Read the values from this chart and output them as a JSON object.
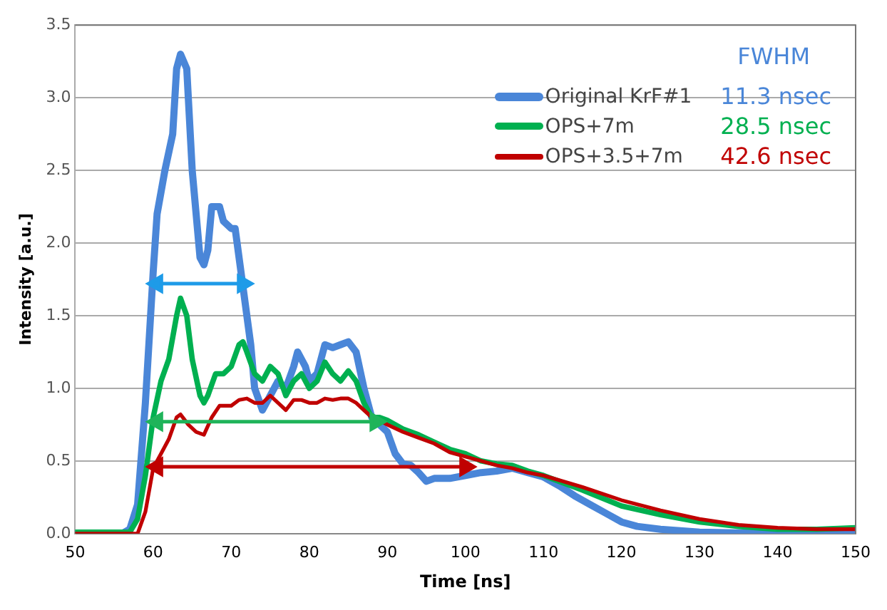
{
  "chart_data": {
    "type": "line",
    "xlabel": "Time [ns]",
    "ylabel": "Intensity [a.u.]",
    "legend_title": "FWHM",
    "legend": "top right",
    "grid": "y",
    "marker": "none",
    "xlim": [
      50,
      150
    ],
    "xticks": [
      50,
      60,
      70,
      80,
      90,
      100,
      110,
      120,
      130,
      140,
      150
    ],
    "ylim": [
      0,
      3.5
    ],
    "yticks": [
      {
        "value": 0,
        "label": "0.0"
      },
      {
        "value": 0.5,
        "label": "0.5"
      },
      {
        "value": 1,
        "label": "1.0"
      },
      {
        "value": 1.5,
        "label": "1.5"
      },
      {
        "value": 2,
        "label": "2.0"
      },
      {
        "value": 2.5,
        "label": "2.5"
      },
      {
        "value": 3,
        "label": "3.0"
      },
      {
        "value": 3.5,
        "label": "3.5"
      }
    ],
    "annotations": [
      "11.3 nsec",
      "28.5 nsec",
      "42.6 nsec"
    ],
    "series": [
      {
        "name": "Original KrF#1",
        "color": "#4a86d8",
        "x": [
          50,
          56,
          57,
          58,
          59,
          60,
          60.5,
          61.5,
          62.5,
          63,
          63.5,
          64.3,
          65,
          66,
          66.5,
          67,
          67.5,
          68.5,
          69,
          70,
          70.5,
          71.5,
          72.5,
          73,
          74,
          75,
          76,
          77,
          78,
          78.5,
          79.5,
          80,
          81,
          82,
          83,
          84,
          85,
          86,
          87,
          88,
          89,
          90,
          91,
          92,
          93,
          94,
          95,
          96,
          98,
          100,
          102,
          104,
          106,
          108,
          110,
          112,
          114,
          116,
          118,
          120,
          122,
          125,
          130,
          140,
          150
        ],
        "values": [
          0,
          0,
          0.03,
          0.2,
          0.9,
          1.8,
          2.2,
          2.5,
          2.75,
          3.2,
          3.3,
          3.2,
          2.5,
          1.9,
          1.85,
          1.95,
          2.25,
          2.25,
          2.15,
          2.1,
          2.1,
          1.7,
          1.3,
          1.0,
          0.85,
          0.95,
          1.05,
          1.0,
          1.15,
          1.25,
          1.15,
          1.05,
          1.1,
          1.3,
          1.28,
          1.3,
          1.32,
          1.25,
          1.0,
          0.8,
          0.75,
          0.7,
          0.55,
          0.48,
          0.47,
          0.42,
          0.36,
          0.38,
          0.38,
          0.4,
          0.42,
          0.43,
          0.45,
          0.42,
          0.39,
          0.33,
          0.26,
          0.2,
          0.14,
          0.08,
          0.05,
          0.03,
          0.01,
          0,
          0.01
        ]
      },
      {
        "name": "OPS+7m",
        "color": "#00b050",
        "x": [
          50,
          57,
          58,
          59,
          60,
          61,
          62,
          63,
          63.5,
          64.3,
          65,
          66,
          66.5,
          67,
          68,
          69,
          70,
          71,
          71.5,
          72,
          73,
          74,
          75,
          76,
          77,
          78,
          79,
          80,
          81,
          82,
          83,
          84,
          85,
          86,
          87,
          88,
          89,
          90,
          92,
          94,
          96,
          98,
          100,
          102,
          104,
          106,
          108,
          110,
          115,
          120,
          125,
          130,
          135,
          140,
          145,
          150
        ],
        "values": [
          0.01,
          0.01,
          0.1,
          0.4,
          0.8,
          1.05,
          1.2,
          1.5,
          1.62,
          1.5,
          1.2,
          0.95,
          0.9,
          0.95,
          1.1,
          1.1,
          1.15,
          1.3,
          1.32,
          1.25,
          1.1,
          1.05,
          1.15,
          1.1,
          0.95,
          1.05,
          1.1,
          1.0,
          1.05,
          1.18,
          1.1,
          1.05,
          1.12,
          1.05,
          0.9,
          0.8,
          0.8,
          0.78,
          0.72,
          0.68,
          0.63,
          0.58,
          0.55,
          0.5,
          0.48,
          0.47,
          0.43,
          0.4,
          0.3,
          0.19,
          0.13,
          0.08,
          0.05,
          0.03,
          0.03,
          0.04
        ]
      },
      {
        "name": "OPS+3.5+7m",
        "color": "#c00000",
        "x": [
          50,
          58,
          59,
          60,
          61,
          62,
          63,
          63.5,
          64.5,
          65.5,
          66.5,
          67.5,
          68.5,
          70,
          71,
          72,
          73,
          74,
          75,
          76,
          77,
          78,
          79,
          80,
          81,
          82,
          83,
          84,
          85,
          86,
          87,
          88,
          89,
          90,
          92,
          94,
          96,
          98,
          100,
          102,
          104,
          106,
          108,
          110,
          115,
          120,
          125,
          130,
          135,
          140,
          145,
          150
        ],
        "values": [
          0,
          0,
          0.15,
          0.45,
          0.55,
          0.65,
          0.8,
          0.82,
          0.75,
          0.7,
          0.68,
          0.8,
          0.88,
          0.88,
          0.92,
          0.93,
          0.9,
          0.9,
          0.95,
          0.9,
          0.85,
          0.92,
          0.92,
          0.9,
          0.9,
          0.93,
          0.92,
          0.93,
          0.93,
          0.9,
          0.85,
          0.8,
          0.78,
          0.75,
          0.7,
          0.66,
          0.62,
          0.56,
          0.53,
          0.5,
          0.47,
          0.45,
          0.42,
          0.4,
          0.32,
          0.23,
          0.16,
          0.1,
          0.06,
          0.04,
          0.03,
          0.03
        ]
      },
      {
        "color": "#1e9be8",
        "marker": "triangle",
        "x": [
          60.5,
          71.5
        ],
        "values": [
          1.72,
          1.72
        ]
      },
      {
        "color": "#1fb45a",
        "marker": "triangle",
        "x": [
          60.5,
          88.5
        ],
        "values": [
          0.77,
          0.77
        ]
      },
      {
        "color": "#c00000",
        "marker": "triangle",
        "x": [
          60.5,
          100
        ],
        "values": [
          0.46,
          0.46
        ]
      }
    ]
  }
}
